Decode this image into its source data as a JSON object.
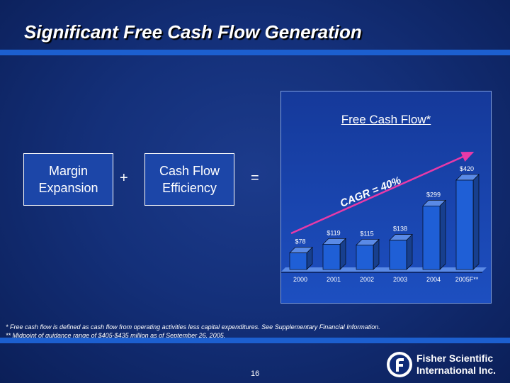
{
  "slide": {
    "title": "Significant Free Cash Flow Generation",
    "page_number": "16"
  },
  "equation": {
    "box1": [
      "Margin",
      "Expansion"
    ],
    "plus": "+",
    "box2": [
      "Cash Flow",
      "Efficiency"
    ],
    "equals": "="
  },
  "footnotes": {
    "note1": "*  Free cash flow is defined as cash flow from operating activities less capital expenditures.  See Supplementary Financial Information.",
    "note2": "** Midpoint of guidance range of $405-$435 million as of September 26, 2005."
  },
  "logo": {
    "line1": "Fisher Scientific",
    "line2": "International Inc."
  },
  "colors": {
    "bar_front": "#1f5fd6",
    "bar_side": "#173f8e",
    "bar_top": "#5a8ae6",
    "arrow": "#e83aa8"
  },
  "chart_data": {
    "type": "bar",
    "title": "Free Cash Flow*",
    "categories": [
      "2000",
      "2001",
      "2002",
      "2003",
      "2004",
      "2005F**"
    ],
    "values": [
      78,
      119,
      115,
      138,
      299,
      420
    ],
    "labels": [
      "$78",
      "$119",
      "$115",
      "$138",
      "$299",
      "$420"
    ],
    "annotation": "CAGR = 40%",
    "ylim": [
      0,
      420
    ],
    "grid": false,
    "legend": "none"
  }
}
